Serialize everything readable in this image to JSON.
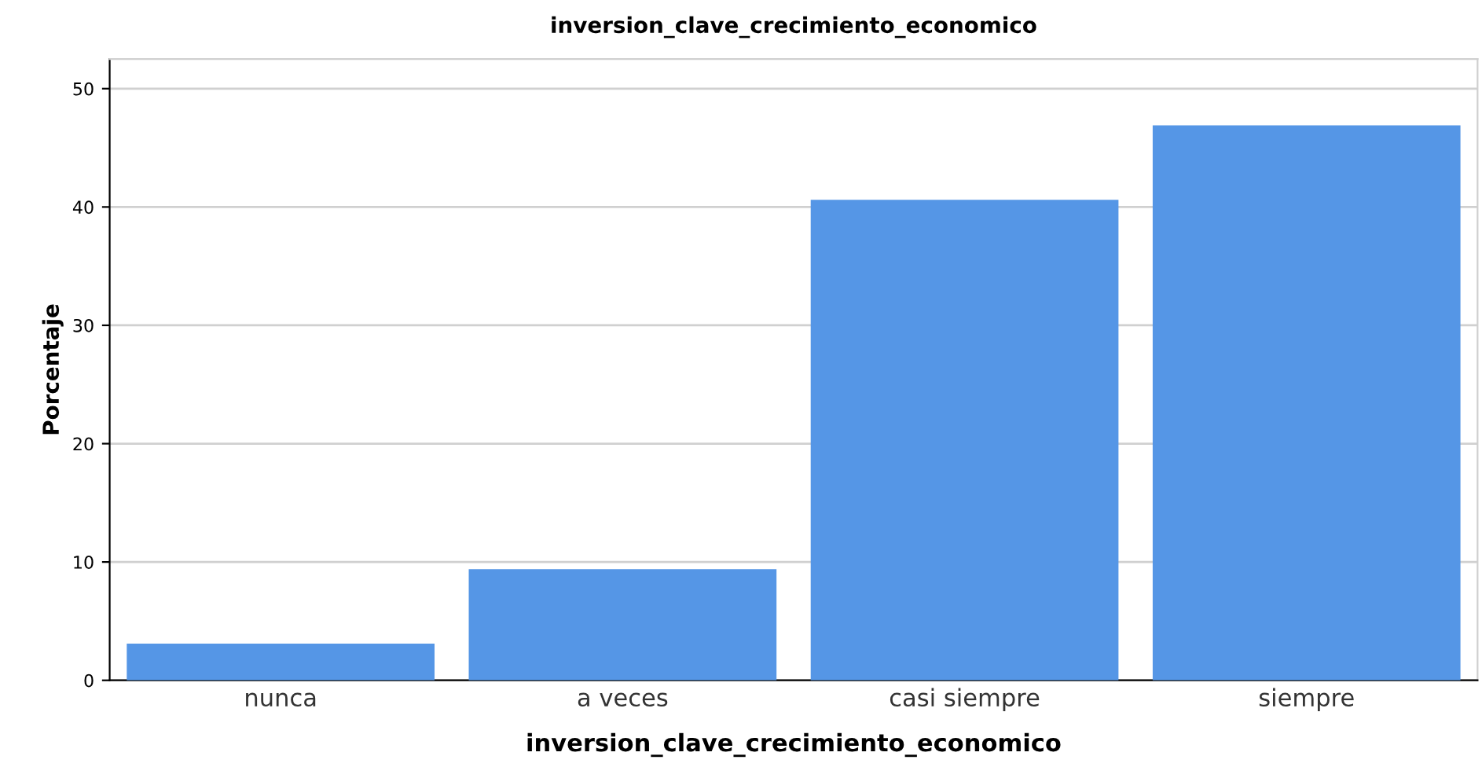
{
  "chart_data": {
    "type": "bar",
    "title": "inversion_clave_crecimiento_economico",
    "xlabel": "inversion_clave_crecimiento_economico",
    "ylabel": "Porcentaje",
    "categories": [
      "nunca",
      "a veces",
      "casi siempre",
      "siempre"
    ],
    "values": [
      3.1,
      9.4,
      40.6,
      46.9
    ],
    "color": "#5596e6",
    "ylim": [
      0,
      52.5
    ],
    "yticks": [
      0,
      10,
      20,
      30,
      40,
      50
    ],
    "grid": "y"
  }
}
